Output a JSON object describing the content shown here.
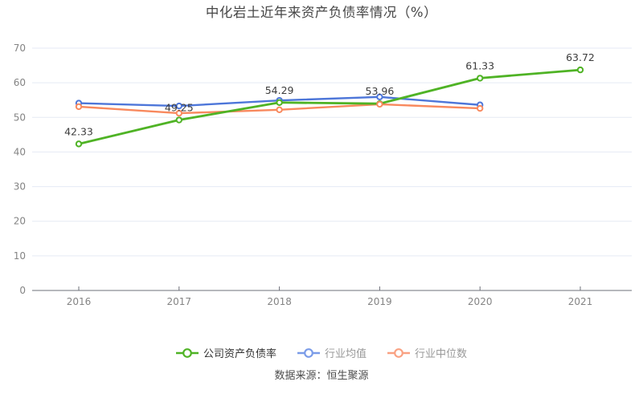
{
  "title": "中化岩土近年来资产负债率情况（%）",
  "source": "数据来源：恒生聚源",
  "chart_data": {
    "type": "line",
    "categories": [
      "2016",
      "2017",
      "2018",
      "2019",
      "2020",
      "2021"
    ],
    "series": [
      {
        "name": "公司资产负债率",
        "color": "#4fb325",
        "values": [
          42.33,
          49.25,
          54.29,
          53.96,
          61.33,
          63.72
        ],
        "labeled": true,
        "marker": "hollow-circle"
      },
      {
        "name": "行业均值",
        "color": "#4d76d9",
        "values": [
          54.1,
          53.3,
          54.9,
          55.9,
          53.6,
          null
        ],
        "labeled": false,
        "marker": "hollow-circle"
      },
      {
        "name": "行业中位数",
        "color": "#f8895e",
        "values": [
          53.1,
          51.2,
          52.2,
          53.8,
          52.6,
          null
        ],
        "labeled": false,
        "marker": "hollow-circle"
      }
    ],
    "ylim": [
      0,
      70
    ],
    "yticks": [
      0,
      10,
      20,
      30,
      40,
      50,
      60,
      70
    ],
    "grid": true,
    "legend_position": "bottom",
    "label_color": "#3c3c3c",
    "axis_color": "#6e7079",
    "grid_color": "#e5eaf4",
    "tick_label_color": "#848484"
  },
  "legend": {
    "items": [
      {
        "label": "公司资产负债率",
        "color": "#4fb325",
        "text_color": "#333333"
      },
      {
        "label": "行业均值",
        "color": "#7a9be8",
        "text_color": "#999999"
      },
      {
        "label": "行业中位数",
        "color": "#f9a182",
        "text_color": "#999999"
      }
    ]
  }
}
